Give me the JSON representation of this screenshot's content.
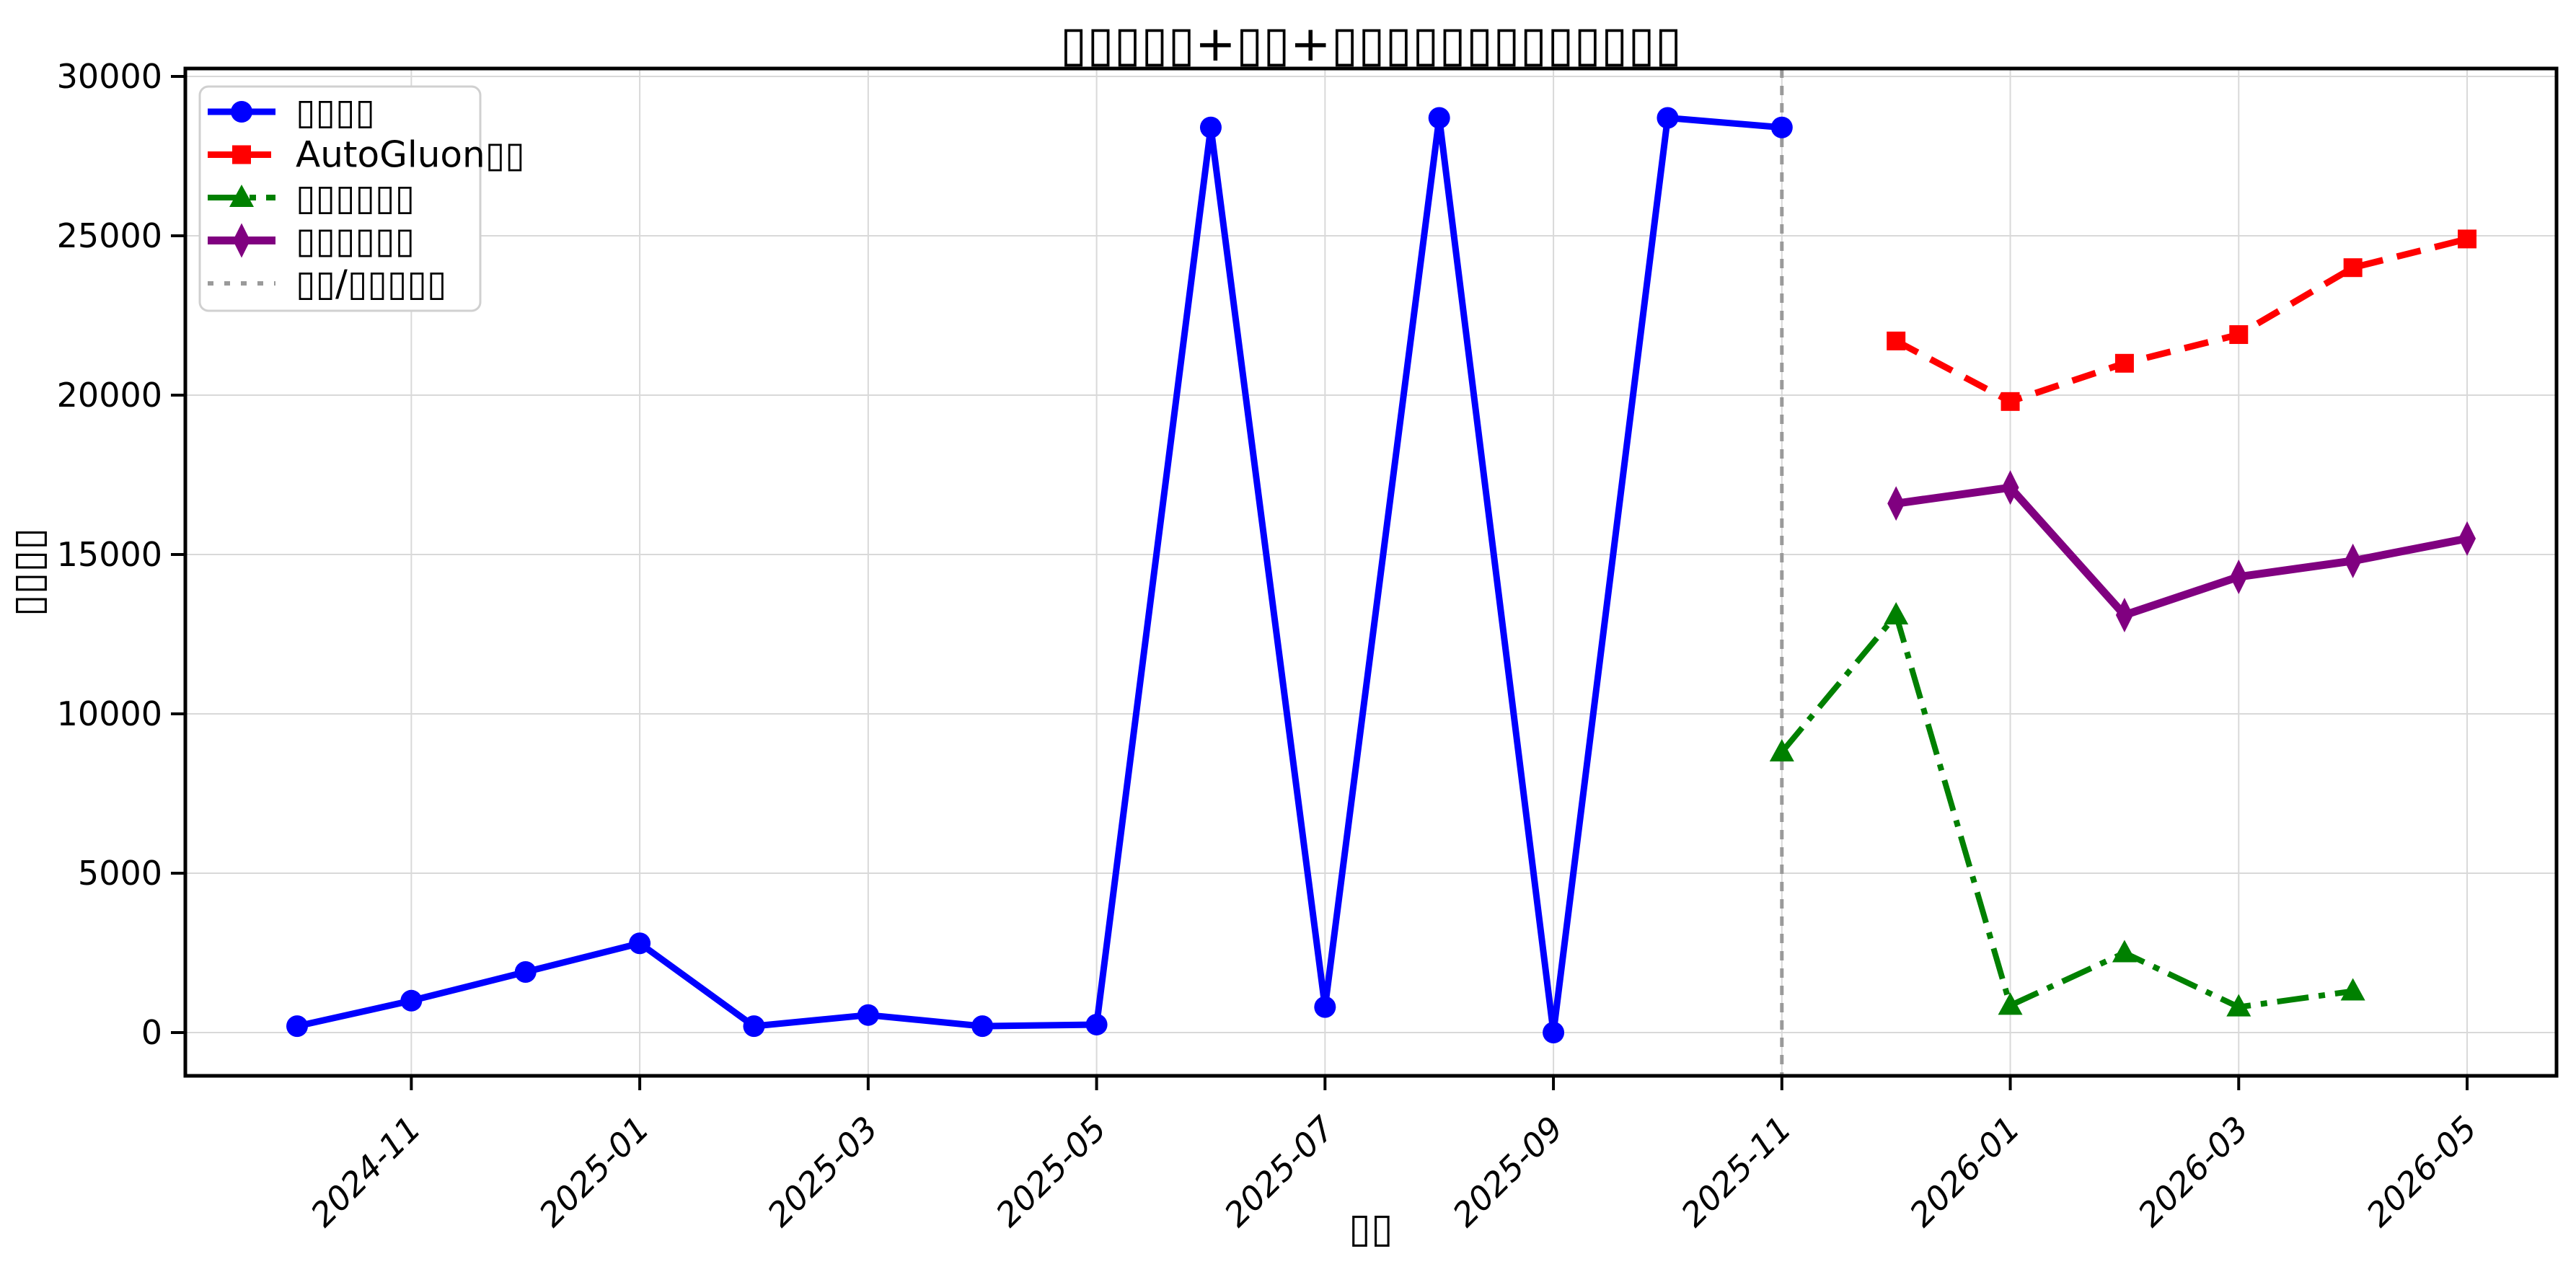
{
  "chart_data": {
    "type": "line",
    "title": "▯▯▯▯▯+▯▯+▯▯▯▯▯▯▯▯▯▯▯▯▯",
    "xlabel": "▯▯",
    "ylabel": "▯▯▯▯",
    "ylim": [
      0,
      30000
    ],
    "yticks": [
      0,
      5000,
      10000,
      15000,
      20000,
      25000,
      30000
    ],
    "xticks": [
      "2024-11",
      "2025-01",
      "2025-03",
      "2025-05",
      "2025-07",
      "2025-09",
      "2025-11",
      "2026-01",
      "2026-03",
      "2026-05"
    ],
    "grid": true,
    "grid_color": "#d9d9d9",
    "background": "#ffffff",
    "legend_position": "upper-left",
    "vline": {
      "x": "2025-11",
      "label": "▯▯/▯▯▯▯▯",
      "color": "#9a9a9a",
      "linestyle": "dotted"
    },
    "series": [
      {
        "id": "history",
        "label": "▯▯▯▯",
        "color": "#0000ff",
        "linestyle": "solid",
        "marker": "circle",
        "x": [
          "2024-10",
          "2024-11",
          "2024-12",
          "2025-01",
          "2025-02",
          "2025-03",
          "2025-04",
          "2025-05",
          "2025-06",
          "2025-07",
          "2025-08",
          "2025-09",
          "2025-10",
          "2025-11"
        ],
        "y": [
          200,
          1000,
          1900,
          2800,
          200,
          550,
          200,
          250,
          28400,
          800,
          28700,
          0,
          28700,
          28400
        ]
      },
      {
        "id": "autogluon-forecast",
        "label": "AutoGluon▯▯",
        "color": "#ff0000",
        "linestyle": "dashed",
        "marker": "square",
        "x": [
          "2025-12",
          "2026-01",
          "2026-02",
          "2026-03",
          "2026-04",
          "2026-05"
        ],
        "y": [
          21700,
          19800,
          21000,
          21900,
          24000,
          24900
        ]
      },
      {
        "id": "naive-forecast",
        "label": "▯▯▯▯▯▯",
        "color": "#008000",
        "linestyle": "dashdot",
        "marker": "triangle-up",
        "x": [
          "2025-11",
          "2025-12",
          "2026-01",
          "2026-02",
          "2026-03",
          "2026-04"
        ],
        "y": [
          8800,
          13100,
          850,
          2500,
          800,
          1300
        ]
      },
      {
        "id": "seasonal-forecast",
        "label": "▯▯▯▯▯▯",
        "color": "#800080",
        "linestyle": "solid",
        "marker": "thin-diamond",
        "x": [
          "2025-12",
          "2026-01",
          "2026-02",
          "2026-03",
          "2026-04",
          "2026-05"
        ],
        "y": [
          16600,
          17100,
          13100,
          14300,
          14800,
          15500
        ]
      }
    ]
  }
}
